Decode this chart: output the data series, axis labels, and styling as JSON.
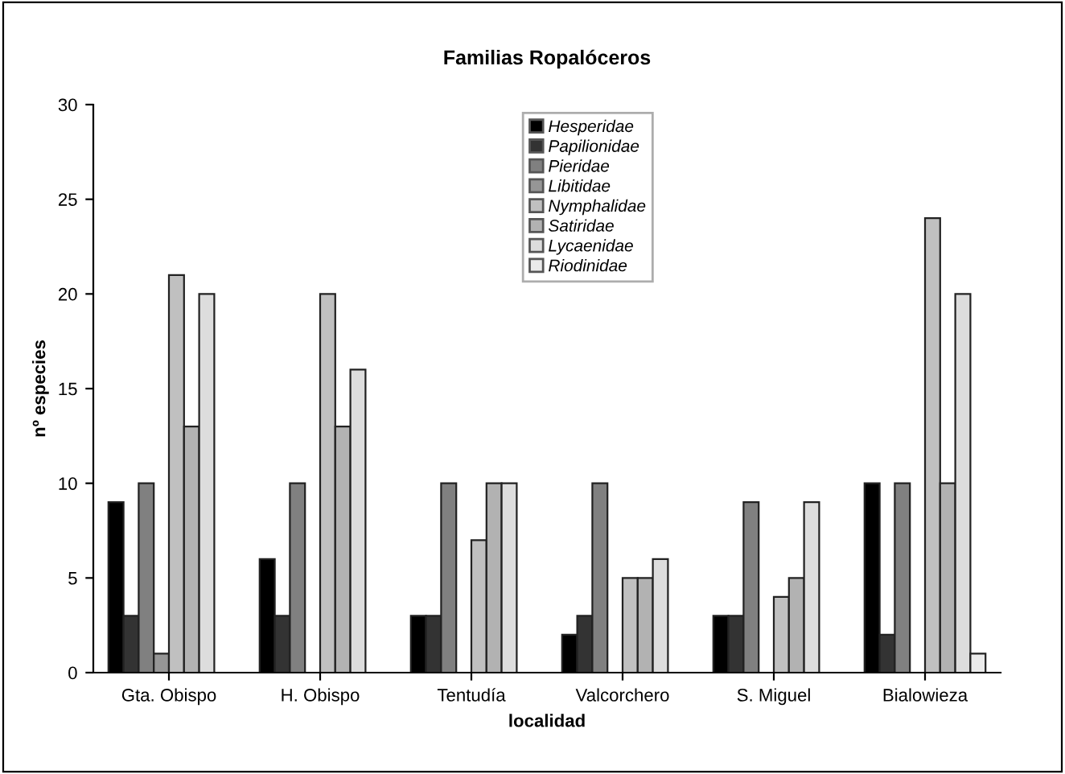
{
  "chart_data": {
    "type": "bar",
    "title": "Familias Ropalóceros",
    "xlabel": "localidad",
    "ylabel": "nº especies",
    "categories": [
      "Gta. Obispo",
      "H. Obispo",
      "Tentudía",
      "Valcorchero",
      "S. Miguel",
      "Bialowieza"
    ],
    "series": [
      {
        "name": "Hesperidae",
        "color": "#000000",
        "values": [
          9,
          6,
          3,
          2,
          3,
          10
        ]
      },
      {
        "name": "Papilionidae",
        "color": "#333333",
        "values": [
          3,
          3,
          3,
          3,
          3,
          2
        ]
      },
      {
        "name": "Pieridae",
        "color": "#808080",
        "values": [
          10,
          10,
          10,
          10,
          9,
          10
        ]
      },
      {
        "name": "Libitidae",
        "color": "#969696",
        "values": [
          1,
          null,
          null,
          null,
          null,
          null
        ]
      },
      {
        "name": "Nymphalidae",
        "color": "#c0c0c0",
        "values": [
          21,
          20,
          7,
          5,
          4,
          24
        ]
      },
      {
        "name": "Satiridae",
        "color": "#b2b2b2",
        "values": [
          13,
          13,
          10,
          5,
          5,
          10
        ]
      },
      {
        "name": "Lycaenidae",
        "color": "#dddddd",
        "values": [
          20,
          16,
          10,
          6,
          9,
          20
        ]
      },
      {
        "name": "Riodinidae",
        "color": "#ebebeb",
        "values": [
          null,
          null,
          null,
          null,
          null,
          1
        ]
      }
    ],
    "ylim": [
      0,
      30
    ],
    "yticks": [
      0,
      5,
      10,
      15,
      20,
      25,
      30
    ],
    "grid": false,
    "legend": "top"
  }
}
